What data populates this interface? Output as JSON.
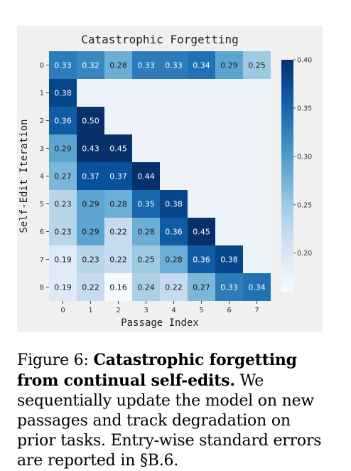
{
  "chart_data": {
    "type": "heatmap",
    "title": "Catastrophic Forgetting",
    "xlabel": "Passage Index",
    "ylabel": "Self-Edit Iteration",
    "x_ticks": [
      "0",
      "1",
      "2",
      "3",
      "4",
      "5",
      "6",
      "7"
    ],
    "y_ticks": [
      "0",
      "1",
      "2",
      "3",
      "4",
      "5",
      "6",
      "7",
      "8"
    ],
    "values": [
      [
        0.33,
        0.32,
        0.28,
        0.33,
        0.33,
        0.34,
        0.29,
        0.25
      ],
      [
        0.38,
        null,
        null,
        null,
        null,
        null,
        null,
        null
      ],
      [
        0.36,
        0.5,
        null,
        null,
        null,
        null,
        null,
        null
      ],
      [
        0.29,
        0.43,
        0.45,
        null,
        null,
        null,
        null,
        null
      ],
      [
        0.27,
        0.37,
        0.37,
        0.44,
        null,
        null,
        null,
        null
      ],
      [
        0.23,
        0.29,
        0.28,
        0.35,
        0.38,
        null,
        null,
        null
      ],
      [
        0.23,
        0.29,
        0.22,
        0.28,
        0.36,
        0.45,
        null,
        null
      ],
      [
        0.19,
        0.23,
        0.22,
        0.25,
        0.28,
        0.36,
        0.38,
        null
      ],
      [
        0.19,
        0.22,
        0.16,
        0.24,
        0.22,
        0.27,
        0.33,
        0.34
      ]
    ],
    "labels": [
      [
        "0.33",
        "0.32",
        "0.28",
        "0.33",
        "0.33",
        "0.34",
        "0.29",
        "0.25"
      ],
      [
        "0.38",
        "",
        "",
        "",
        "",
        "",
        "",
        ""
      ],
      [
        "0.36",
        "0.50",
        "",
        "",
        "",
        "",
        "",
        ""
      ],
      [
        "0.29",
        "0.43",
        "0.45",
        "",
        "",
        "",
        "",
        ""
      ],
      [
        "0.27",
        "0.37",
        "0.37",
        "0.44",
        "",
        "",
        "",
        ""
      ],
      [
        "0.23",
        "0.29",
        "0.28",
        "0.35",
        "0.38",
        "",
        "",
        ""
      ],
      [
        "0.23",
        "0.29",
        "0.22",
        "0.28",
        "0.36",
        "0.45",
        "",
        ""
      ],
      [
        "0.19",
        "0.23",
        "0.22",
        "0.25",
        "0.28",
        "0.36",
        "0.38",
        ""
      ],
      [
        "0.19",
        "0.22",
        "0.16",
        "0.24",
        "0.22",
        "0.27",
        "0.33",
        "0.34"
      ]
    ],
    "colorbar": {
      "min": 0.16,
      "max": 0.4,
      "ticks": [
        "0.40",
        "0.35",
        "0.30",
        "0.25",
        "0.20"
      ],
      "tick_values": [
        0.4,
        0.35,
        0.3,
        0.25,
        0.2
      ]
    },
    "colormap": "Blues",
    "empty_cell_color": "#eef3fa",
    "grid": false
  },
  "caption": {
    "prefix": "Figure 6: ",
    "bold": "Catastrophic forgetting from continual self-edits.",
    "rest": " We sequentially update the model on new passages and track degradation on prior tasks. Entry-wise standard errors are reported in §B.6."
  }
}
